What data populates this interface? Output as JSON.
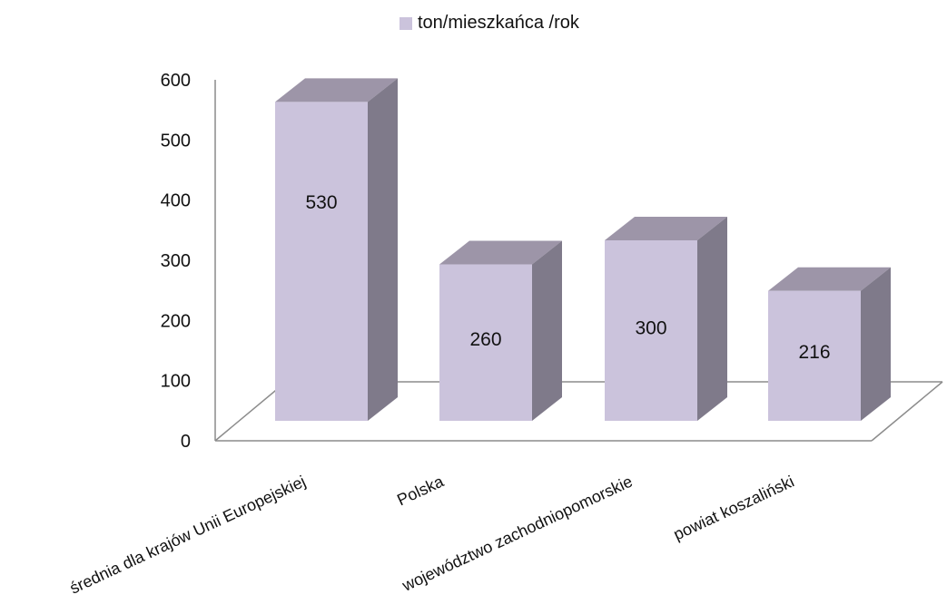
{
  "chart_data": {
    "type": "bar",
    "categories": [
      "średnia dla krajów Unii Europejskiej",
      "Polska",
      "województwo zachodniopomorskie",
      "powiat koszaliński"
    ],
    "series": [
      {
        "name": "ton/mieszkańca /rok",
        "values": [
          530,
          260,
          300,
          216
        ]
      }
    ],
    "ylim": [
      0,
      600
    ],
    "yticks": [
      0,
      100,
      200,
      300,
      400,
      500,
      600
    ],
    "legend_position": "top",
    "grid": false
  },
  "colors": {
    "bar_front": "#cbc3dc",
    "bar_top": "#9d95a8",
    "bar_side": "#7f7a8a",
    "axis": "#8c8c8c",
    "text": "#111111"
  }
}
